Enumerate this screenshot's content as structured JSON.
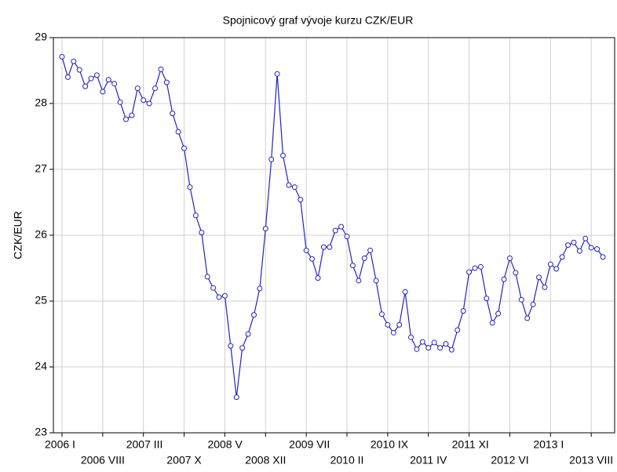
{
  "chart_data": {
    "type": "line",
    "title": "Spojnicový graf vývoje kurzu CZK/EUR",
    "y_label": "CZK/EUR",
    "categories": [
      "2006 I",
      null,
      null,
      null,
      null,
      null,
      null,
      "2006 VIII",
      null,
      null,
      null,
      null,
      null,
      null,
      "2007 III",
      null,
      null,
      null,
      null,
      null,
      null,
      "2007 X",
      null,
      null,
      null,
      null,
      null,
      null,
      "2008 V",
      null,
      null,
      null,
      null,
      null,
      null,
      "2008 XII",
      null,
      null,
      null,
      null,
      null,
      null,
      "2009 VII",
      null,
      null,
      null,
      null,
      null,
      null,
      "2010 II",
      null,
      null,
      null,
      null,
      null,
      null,
      "2010 IX",
      null,
      null,
      null,
      null,
      null,
      null,
      "2011 IV",
      null,
      null,
      null,
      null,
      null,
      null,
      "2011 XI",
      null,
      null,
      null,
      null,
      null,
      null,
      "2012 VI",
      null,
      null,
      null,
      null,
      null,
      null,
      "2013 I",
      null,
      null,
      null,
      null,
      null,
      null,
      "2013 VIII",
      null,
      null
    ],
    "series": [
      {
        "name": "CZK/EUR",
        "color": "#2222cc",
        "values": [
          28.71,
          28.4,
          28.64,
          28.51,
          28.26,
          28.38,
          28.43,
          28.18,
          28.36,
          28.3,
          28.02,
          27.76,
          27.82,
          28.23,
          28.05,
          28.0,
          28.23,
          28.52,
          28.32,
          27.85,
          27.57,
          27.32,
          26.73,
          26.3,
          26.04,
          25.37,
          25.2,
          25.06,
          25.08,
          24.32,
          23.54,
          24.29,
          24.5,
          24.79,
          25.19,
          26.1,
          27.15,
          28.45,
          27.21,
          26.76,
          26.73,
          26.54,
          25.77,
          25.64,
          25.35,
          25.82,
          25.82,
          26.07,
          26.13,
          25.98,
          25.54,
          25.31,
          25.65,
          25.77,
          25.31,
          24.8,
          24.64,
          24.52,
          24.64,
          25.14,
          24.45,
          24.27,
          24.38,
          24.29,
          24.37,
          24.29,
          24.35,
          24.26,
          24.56,
          24.85,
          25.44,
          25.5,
          25.52,
          25.04,
          24.67,
          24.81,
          25.33,
          25.65,
          25.43,
          25.02,
          24.74,
          24.95,
          25.36,
          25.21,
          25.56,
          25.49,
          25.67,
          25.85,
          25.89,
          25.76,
          25.95,
          25.81,
          25.79,
          25.67
        ]
      }
    ],
    "ylim": [
      23,
      29
    ],
    "yticks": [
      23,
      24,
      25,
      26,
      27,
      28,
      29
    ],
    "grid": true
  }
}
